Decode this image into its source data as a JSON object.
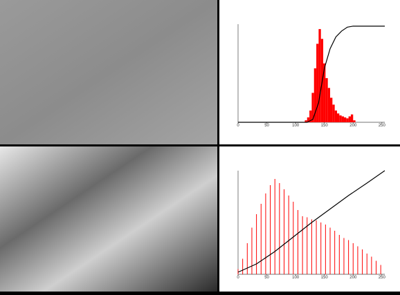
{
  "chart_data": [
    {
      "type": "histogram",
      "xlim": [
        0,
        255
      ],
      "xticks": [
        0,
        50,
        100,
        150,
        200,
        250
      ],
      "ylim": [
        0,
        100
      ],
      "color": "#ff0000",
      "bins": [
        116,
        120,
        124,
        128,
        132,
        136,
        140,
        144,
        148,
        152,
        156,
        160,
        164,
        168,
        172,
        176,
        180,
        184,
        188,
        192,
        196,
        200,
        204
      ],
      "counts": [
        2,
        5,
        12,
        30,
        55,
        80,
        95,
        85,
        60,
        45,
        35,
        25,
        18,
        12,
        9,
        7,
        6,
        5,
        4,
        6,
        8,
        2
      ],
      "cumulative": {
        "color": "#000000",
        "x": [
          0,
          120,
          130,
          140,
          150,
          160,
          170,
          180,
          190,
          200,
          255
        ],
        "values": [
          0,
          0,
          3,
          20,
          55,
          75,
          87,
          93,
          97,
          98,
          98
        ]
      }
    },
    {
      "type": "stem",
      "xlim": [
        0,
        255
      ],
      "xticks": [
        0,
        50,
        100,
        150,
        200,
        250
      ],
      "ylim": [
        0,
        100
      ],
      "color": "#ff0000",
      "x": [
        0,
        8,
        16,
        24,
        32,
        40,
        48,
        56,
        64,
        72,
        80,
        88,
        96,
        104,
        112,
        120,
        128,
        136,
        144,
        152,
        160,
        168,
        176,
        184,
        192,
        200,
        208,
        216,
        224,
        232,
        240,
        248
      ],
      "values": [
        5,
        15,
        30,
        45,
        58,
        68,
        78,
        86,
        92,
        88,
        82,
        76,
        70,
        62,
        56,
        55,
        53,
        52,
        50,
        48,
        45,
        42,
        38,
        35,
        33,
        30,
        27,
        24,
        20,
        17,
        13,
        9
      ],
      "cumulative": {
        "color": "#000000",
        "x": [
          0,
          32,
          64,
          96,
          128,
          160,
          192,
          224,
          255
        ],
        "values": [
          2,
          10,
          22,
          36,
          50,
          63,
          76,
          88,
          100
        ]
      }
    }
  ]
}
